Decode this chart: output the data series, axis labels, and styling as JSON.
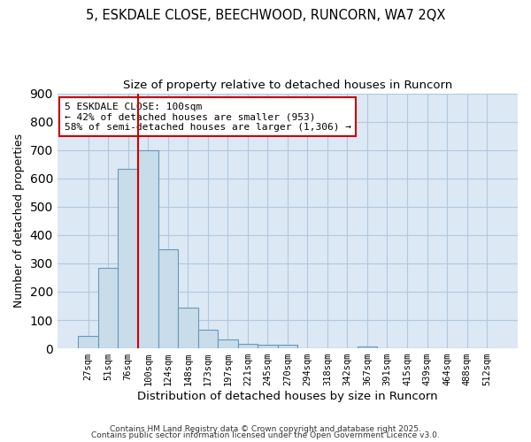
{
  "title1": "5, ESKDALE CLOSE, BEECHWOOD, RUNCORN, WA7 2QX",
  "title2": "Size of property relative to detached houses in Runcorn",
  "xlabel": "Distribution of detached houses by size in Runcorn",
  "ylabel": "Number of detached properties",
  "bar_labels": [
    "27sqm",
    "51sqm",
    "76sqm",
    "100sqm",
    "124sqm",
    "148sqm",
    "173sqm",
    "197sqm",
    "221sqm",
    "245sqm",
    "270sqm",
    "294sqm",
    "318sqm",
    "342sqm",
    "367sqm",
    "391sqm",
    "415sqm",
    "439sqm",
    "464sqm",
    "488sqm",
    "512sqm"
  ],
  "bar_values": [
    45,
    285,
    635,
    700,
    350,
    145,
    67,
    32,
    15,
    12,
    12,
    0,
    0,
    0,
    8,
    0,
    0,
    0,
    0,
    0,
    0
  ],
  "bar_color": "#c8dcea",
  "bar_edge_color": "#6699bb",
  "grid_color": "#b0c8e0",
  "vline_color": "#cc0000",
  "annotation_text": "5 ESKDALE CLOSE: 100sqm\n← 42% of detached houses are smaller (953)\n58% of semi-detached houses are larger (1,306) →",
  "annotation_box_color": "#ffffff",
  "annotation_box_edge": "#cc0000",
  "ylim": [
    0,
    900
  ],
  "yticks": [
    0,
    100,
    200,
    300,
    400,
    500,
    600,
    700,
    800,
    900
  ],
  "figure_bg": "#ffffff",
  "axes_bg": "#dce8f4",
  "footer1": "Contains HM Land Registry data © Crown copyright and database right 2025.",
  "footer2": "Contains public sector information licensed under the Open Government Licence v3.0."
}
